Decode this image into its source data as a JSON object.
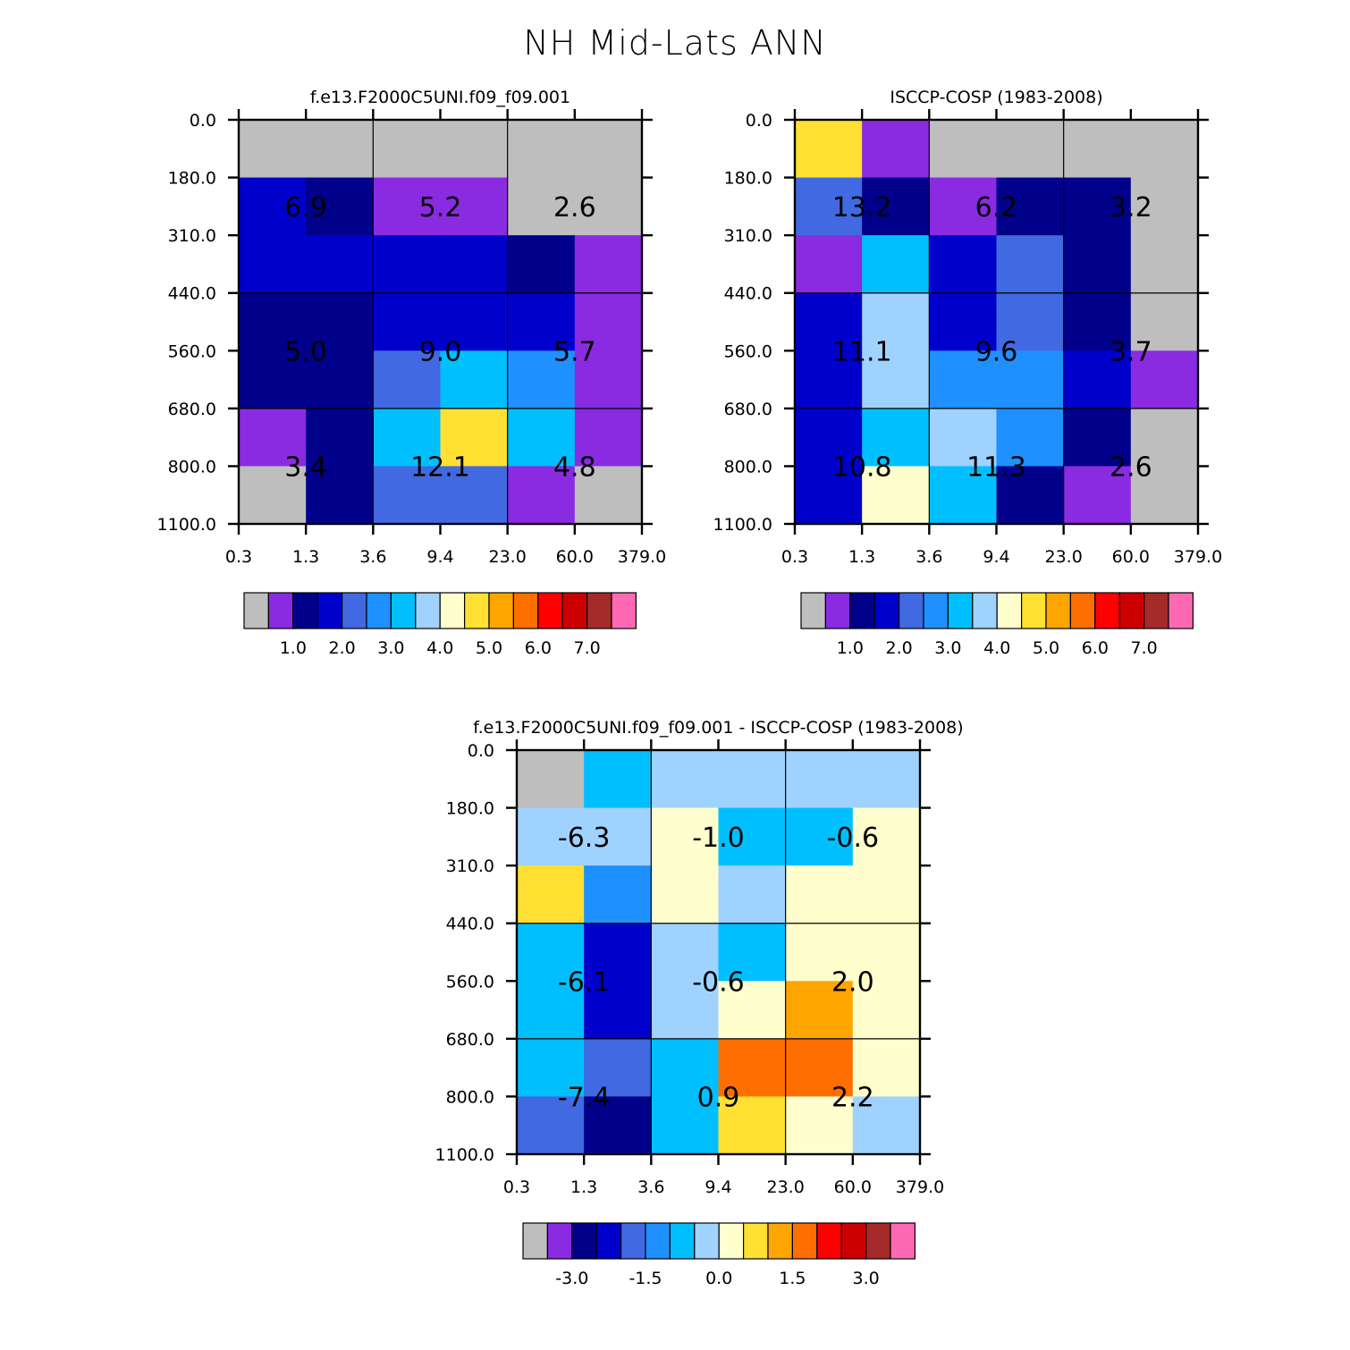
{
  "page_title": "NH Mid-Lats ANN",
  "x_tick_labels": [
    "0.3",
    "1.3",
    "3.6",
    "9.4",
    "23.0",
    "60.0",
    "379.0"
  ],
  "y_tick_labels": [
    "0.0",
    "180.0",
    "310.0",
    "440.0",
    "560.0",
    "680.0",
    "800.0",
    "1100.0"
  ],
  "palette": [
    "#bebebe",
    "#8a2be2",
    "#00008b",
    "#0000cd",
    "#4169e1",
    "#1e90ff",
    "#00bfff",
    "#a0d2ff",
    "#ffffcd",
    "#ffe033",
    "#ffa500",
    "#ff6e00",
    "#ff0000",
    "#cd0000",
    "#a52a2a",
    "#ff69b4"
  ],
  "chart_data": [
    {
      "type": "heatmap",
      "title": "f.e13.F2000C5UNI.f09_f09.001",
      "x_bins": [
        "0.3",
        "1.3",
        "3.6",
        "9.4",
        "23.0",
        "60.0",
        "379.0"
      ],
      "y_bins": [
        "0.0",
        "180.0",
        "310.0",
        "440.0",
        "560.0",
        "680.0",
        "800.0",
        "1100.0"
      ],
      "cell_color_index": [
        [
          0,
          0,
          0,
          0,
          0,
          0
        ],
        [
          3,
          2,
          1,
          1,
          0,
          0
        ],
        [
          3,
          3,
          3,
          3,
          2,
          1
        ],
        [
          2,
          2,
          3,
          3,
          3,
          1
        ],
        [
          2,
          2,
          4,
          6,
          5,
          1
        ],
        [
          1,
          2,
          6,
          9,
          6,
          1
        ],
        [
          0,
          2,
          4,
          4,
          1,
          0
        ]
      ],
      "box_labels": [
        [
          "6.9",
          "5.2",
          "2.6"
        ],
        [
          "5.0",
          "9.0",
          "5.7"
        ],
        [
          "3.4",
          "12.1",
          "4.8"
        ]
      ],
      "colorbar_labels": [
        "1.0",
        "2.0",
        "3.0",
        "4.0",
        "5.0",
        "6.0",
        "7.0"
      ]
    },
    {
      "type": "heatmap",
      "title": "ISCCP-COSP (1983-2008)",
      "x_bins": [
        "0.3",
        "1.3",
        "3.6",
        "9.4",
        "23.0",
        "60.0",
        "379.0"
      ],
      "y_bins": [
        "0.0",
        "180.0",
        "310.0",
        "440.0",
        "560.0",
        "680.0",
        "800.0",
        "1100.0"
      ],
      "cell_color_index": [
        [
          9,
          1,
          0,
          0,
          0,
          0
        ],
        [
          4,
          2,
          1,
          2,
          2,
          0
        ],
        [
          1,
          6,
          3,
          4,
          2,
          0
        ],
        [
          3,
          7,
          3,
          4,
          2,
          0
        ],
        [
          3,
          7,
          5,
          5,
          3,
          1
        ],
        [
          3,
          6,
          7,
          5,
          2,
          0
        ],
        [
          3,
          8,
          6,
          2,
          1,
          0
        ]
      ],
      "box_labels": [
        [
          "13.2",
          "6.2",
          "3.2"
        ],
        [
          "11.1",
          "9.6",
          "3.7"
        ],
        [
          "10.8",
          "11.3",
          "2.6"
        ]
      ],
      "colorbar_labels": [
        "1.0",
        "2.0",
        "3.0",
        "4.0",
        "5.0",
        "6.0",
        "7.0"
      ]
    },
    {
      "type": "heatmap",
      "title": "f.e13.F2000C5UNI.f09_f09.001 - ISCCP-COSP (1983-2008)",
      "x_bins": [
        "0.3",
        "1.3",
        "3.6",
        "9.4",
        "23.0",
        "60.0",
        "379.0"
      ],
      "y_bins": [
        "0.0",
        "180.0",
        "310.0",
        "440.0",
        "560.0",
        "680.0",
        "800.0",
        "1100.0"
      ],
      "cell_color_index": [
        [
          0,
          6,
          7,
          7,
          7,
          7
        ],
        [
          7,
          7,
          8,
          6,
          6,
          8
        ],
        [
          9,
          5,
          8,
          7,
          8,
          8
        ],
        [
          6,
          3,
          7,
          6,
          8,
          8
        ],
        [
          6,
          3,
          7,
          8,
          10,
          8
        ],
        [
          6,
          4,
          6,
          11,
          11,
          8
        ],
        [
          4,
          2,
          6,
          9,
          8,
          7
        ]
      ],
      "box_labels": [
        [
          "-6.3",
          "-1.0",
          "-0.6"
        ],
        [
          "-6.1",
          "-0.6",
          "2.0"
        ],
        [
          "-7.4",
          "0.9",
          "2.2"
        ]
      ],
      "colorbar_labels": [
        "-3.0",
        "-1.5",
        "0.0",
        "1.5",
        "3.0"
      ]
    }
  ]
}
